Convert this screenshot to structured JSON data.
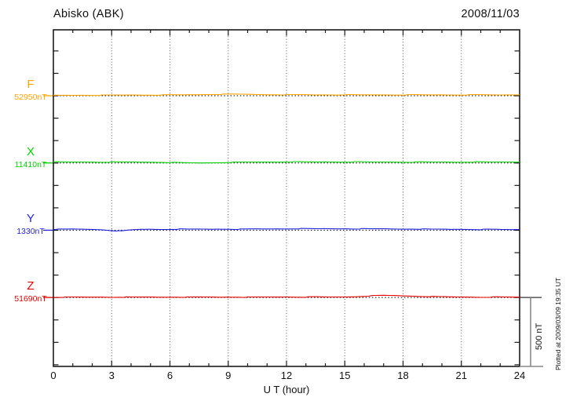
{
  "chart_data": {
    "type": "line",
    "title": "Abisko (ABK)",
    "date": "2008/11/03",
    "xlabel": "U T (hour)",
    "x_range_hours": [
      0,
      24
    ],
    "x_major_tick_step": 3,
    "x_minor_tick_step": 1,
    "x_tick_labels": [
      "0",
      "3",
      "6",
      "9",
      "12",
      "15",
      "18",
      "21",
      "24"
    ],
    "sample_step_hours": 0.5,
    "grid": "vertical-dotted-every-3h",
    "legend_position": "left-of-axis",
    "scale_bar": {
      "label": "500 nT",
      "span_nT": 500
    },
    "annotation": "Plotted at 2009/03/09 19:35 UT",
    "axis_color": "#1a1a1a",
    "series": [
      {
        "id": "F",
        "label": "F",
        "baseline_label": "52950nT",
        "baseline_nT": 52950,
        "color": "#FFA500",
        "offsets_nT": [
          3,
          3,
          3,
          4,
          3,
          4,
          4,
          4,
          5,
          5,
          5,
          5,
          6,
          6,
          7,
          8,
          9,
          10,
          11,
          11,
          10,
          9,
          8,
          8,
          7,
          7,
          7,
          6,
          7,
          6,
          7,
          6,
          6,
          6,
          7,
          6,
          6,
          7,
          6,
          6,
          7,
          6,
          6,
          6,
          7,
          6,
          6,
          7,
          7
        ]
      },
      {
        "id": "X",
        "label": "X",
        "baseline_label": "11410nT",
        "baseline_nT": 11410,
        "color": "#00D400",
        "offsets_nT": [
          7,
          7,
          6,
          7,
          7,
          6,
          7,
          6,
          7,
          6,
          6,
          5,
          4,
          2,
          1,
          0,
          1,
          3,
          4,
          5,
          6,
          6,
          7,
          7,
          8,
          8,
          7,
          7,
          8,
          7,
          7,
          8,
          7,
          6,
          7,
          7,
          6,
          6,
          7,
          6,
          7,
          6,
          6,
          7,
          7,
          6,
          7,
          7,
          7
        ]
      },
      {
        "id": "Y",
        "label": "Y",
        "baseline_label": "1330nT",
        "baseline_nT": 1330,
        "color": "#2222DD",
        "offsets_nT": [
          7,
          7,
          8,
          7,
          6,
          4,
          -2,
          -6,
          2,
          6,
          7,
          6,
          7,
          8,
          7,
          8,
          7,
          8,
          8,
          7,
          8,
          9,
          9,
          10,
          10,
          11,
          11,
          10,
          11,
          10,
          11,
          10,
          10,
          9,
          10,
          9,
          8,
          9,
          8,
          7,
          7,
          6,
          7,
          6,
          5,
          6,
          5,
          4,
          5
        ]
      },
      {
        "id": "Z",
        "label": "Z",
        "baseline_label": "51690nT",
        "baseline_nT": 51690,
        "color": "#E80000",
        "offsets_nT": [
          2,
          2,
          2,
          2,
          2,
          3,
          2,
          3,
          2,
          2,
          3,
          2,
          3,
          3,
          2,
          3,
          3,
          2,
          3,
          3,
          2,
          2,
          3,
          3,
          4,
          3,
          3,
          4,
          3,
          3,
          4,
          6,
          9,
          13,
          15,
          14,
          12,
          10,
          8,
          6,
          5,
          4,
          3,
          3,
          2,
          3,
          3,
          2,
          2
        ]
      }
    ]
  }
}
